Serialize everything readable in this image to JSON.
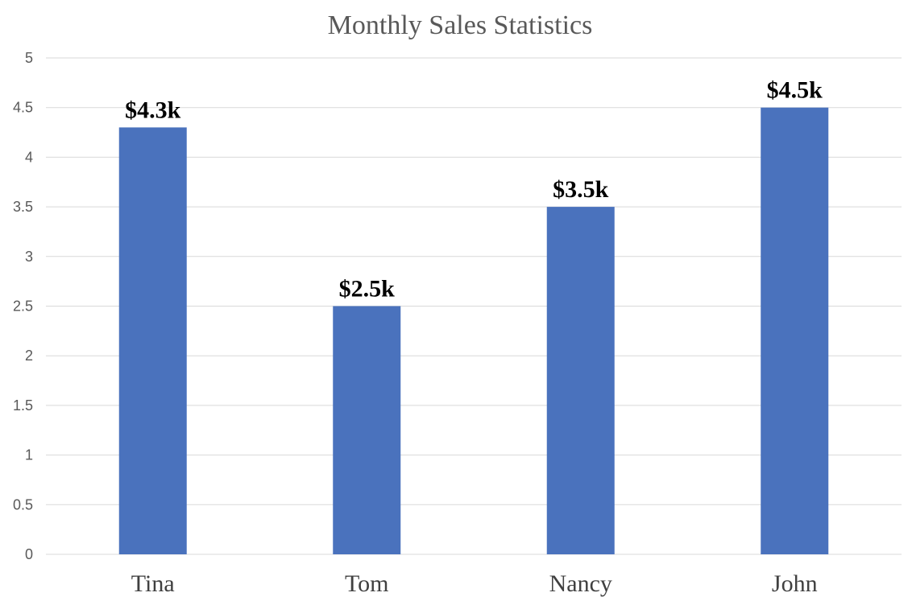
{
  "chart_data": {
    "type": "bar",
    "title": "Monthly Sales Statistics",
    "categories": [
      "Tina",
      "Tom",
      "Nancy",
      "John"
    ],
    "values": [
      4.3,
      2.5,
      3.5,
      4.5
    ],
    "data_labels": [
      "$4.3k",
      "$2.5k",
      "$3.5k",
      "$4.5k"
    ],
    "xlabel": "",
    "ylabel": "",
    "ylim": [
      0,
      5
    ],
    "yticks": [
      "0",
      "0.5",
      "1",
      "1.5",
      "2",
      "2.5",
      "3",
      "3.5",
      "4",
      "4.5",
      "5"
    ],
    "grid": true,
    "legend": "none",
    "bar_color": "#4a72bd"
  }
}
